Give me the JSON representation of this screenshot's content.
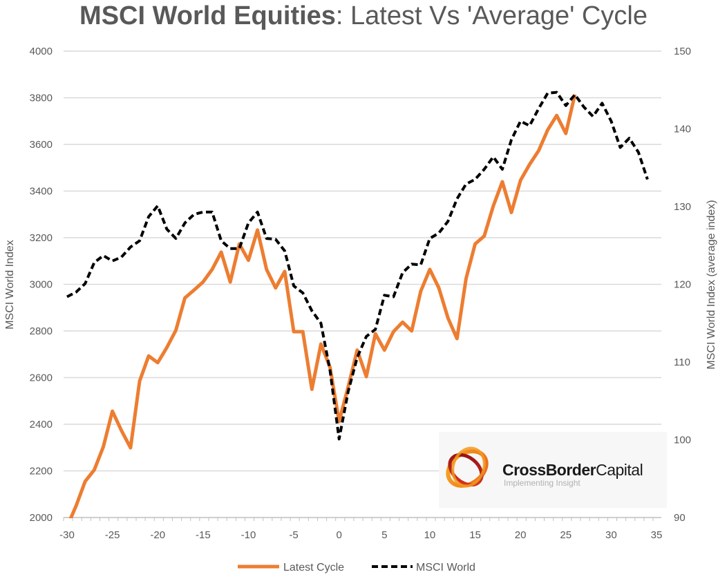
{
  "chart_data": {
    "type": "line",
    "title_bold": "MSCI World Equities",
    "title_rest": ": Latest Vs 'Average' Cycle",
    "xlabel": "",
    "ylabel": "MSCI World Index",
    "y2label": "MSCI World Index (average index)",
    "xlim": [
      -30,
      35
    ],
    "ylim": [
      2000,
      4000
    ],
    "y2lim": [
      90,
      150
    ],
    "x_ticks": [
      -30,
      -25,
      -20,
      -15,
      -10,
      -5,
      0,
      5,
      10,
      15,
      20,
      25,
      30,
      35
    ],
    "y_ticks": [
      2000,
      2200,
      2400,
      2600,
      2800,
      3000,
      3200,
      3400,
      3600,
      3800,
      4000
    ],
    "y2_ticks": [
      90,
      100,
      110,
      120,
      130,
      140,
      150
    ],
    "grid": "horizontal",
    "legend_position": "bottom",
    "series": [
      {
        "name": "Latest Cycle",
        "axis": "left",
        "color": "#ED7D31",
        "style": "solid",
        "x": [
          -30,
          -29,
          -28,
          -27,
          -26,
          -25,
          -24,
          -23,
          -22,
          -21,
          -20,
          -19,
          -18,
          -17,
          -16,
          -15,
          -14,
          -13,
          -12,
          -11,
          -10,
          -9,
          -8,
          -7,
          -6,
          -5,
          -4,
          -3,
          -2,
          -1,
          0,
          1,
          2,
          3,
          4,
          5,
          6,
          7,
          8,
          9,
          10,
          11,
          12,
          13,
          14,
          15,
          16,
          17,
          18,
          19,
          20,
          21,
          22,
          23,
          24,
          25,
          26
        ],
        "values": [
          1960,
          2050,
          2155,
          2204,
          2303,
          2456,
          2373,
          2299,
          2585,
          2693,
          2664,
          2729,
          2803,
          2942,
          2975,
          3010,
          3064,
          3138,
          3010,
          3173,
          3103,
          3233,
          3064,
          2985,
          3055,
          2797,
          2797,
          2550,
          2744,
          2644,
          2412,
          2560,
          2718,
          2604,
          2788,
          2718,
          2797,
          2838,
          2800,
          2970,
          3064,
          2985,
          2856,
          2767,
          3025,
          3173,
          3207,
          3336,
          3440,
          3308,
          3446,
          3514,
          3573,
          3662,
          3724,
          3647,
          3814
        ]
      },
      {
        "name": "MSCI World",
        "axis": "right",
        "color": "#000000",
        "style": "dashed",
        "x": [
          -30,
          -29,
          -28,
          -27,
          -26,
          -25,
          -24,
          -23,
          -22,
          -21,
          -20,
          -19,
          -18,
          -17,
          -16,
          -15,
          -14,
          -13,
          -12,
          -11,
          -10,
          -9,
          -8,
          -7,
          -6,
          -5,
          -4,
          -3,
          -2,
          -1,
          0,
          1,
          2,
          3,
          4,
          5,
          6,
          7,
          8,
          9,
          10,
          11,
          12,
          13,
          14,
          15,
          16,
          17,
          18,
          19,
          20,
          21,
          22,
          23,
          24,
          25,
          26,
          27,
          28,
          29,
          30,
          31,
          32,
          33,
          34
        ],
        "values": [
          118.4,
          119.0,
          120.1,
          122.8,
          123.7,
          123.0,
          123.5,
          124.8,
          125.6,
          128.7,
          130.1,
          127.1,
          125.9,
          127.9,
          129.0,
          129.3,
          129.3,
          125.6,
          124.6,
          124.6,
          127.9,
          129.3,
          125.9,
          125.8,
          124.3,
          119.8,
          118.9,
          116.6,
          115.0,
          108.9,
          100.1,
          106.2,
          110.6,
          113.3,
          114.2,
          118.6,
          118.4,
          121.5,
          122.6,
          122.5,
          125.9,
          126.6,
          128.1,
          131.0,
          132.9,
          133.5,
          134.8,
          136.4,
          134.8,
          138.6,
          141.0,
          140.4,
          142.6,
          144.6,
          144.7,
          143.0,
          144.4,
          142.8,
          141.6,
          143.3,
          141.0,
          137.6,
          138.8,
          137.0,
          133.5
        ]
      }
    ]
  },
  "logo": {
    "name_bold": "CrossBorder",
    "name_light": "Capital",
    "tagline": "Implementing Insight"
  }
}
